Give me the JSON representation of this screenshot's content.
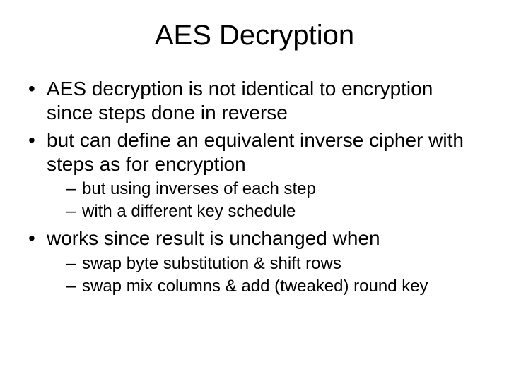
{
  "slide": {
    "title": "AES Decryption",
    "title_fontsize": 40,
    "body_fontsize_l1": 28,
    "body_fontsize_l2": 24,
    "text_color": "#000000",
    "background_color": "#ffffff",
    "bullets": [
      {
        "text": "AES decryption is not identical to encryption since steps done in reverse",
        "children": []
      },
      {
        "text": "but can define an equivalent inverse cipher with steps as for encryption",
        "children": [
          {
            "text": "but using inverses of each step"
          },
          {
            "text": "with a different key schedule"
          }
        ]
      },
      {
        "text": "works since result is unchanged when",
        "children": [
          {
            "text": "swap byte substitution & shift rows"
          },
          {
            "text": "swap mix columns & add (tweaked) round key"
          }
        ]
      }
    ]
  }
}
